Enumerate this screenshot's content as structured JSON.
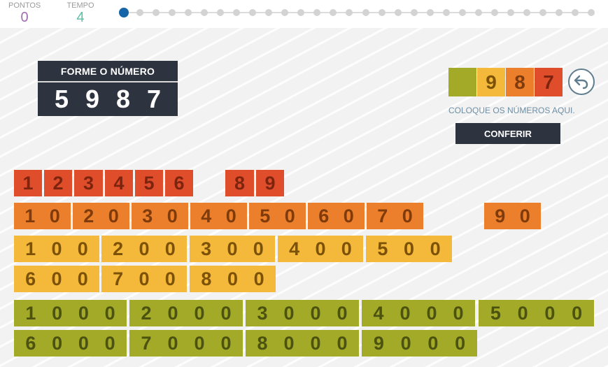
{
  "header": {
    "points_label": "PONTOS",
    "points_value": "0",
    "time_label": "TEMPO",
    "time_value": "4",
    "progress": {
      "current_step": 1,
      "total_steps": 30
    }
  },
  "target": {
    "title": "FORME O NÚMERO",
    "digits": [
      "5",
      "9",
      "8",
      "7"
    ]
  },
  "answer": {
    "slots": [
      "",
      "9",
      "8",
      "7"
    ],
    "hint": "COLOQUE OS NÚMEROS AQUI.",
    "check_label": "CONFERIR"
  },
  "tiles": {
    "units": [
      "1",
      "2",
      "3",
      "4",
      "5",
      "6",
      "8",
      "9"
    ],
    "tens": [
      "10",
      "20",
      "30",
      "40",
      "50",
      "60",
      "70",
      "90"
    ],
    "hundreds": [
      "100",
      "200",
      "300",
      "400",
      "500",
      "600",
      "700",
      "800"
    ],
    "thousands": [
      "1000",
      "2000",
      "3000",
      "4000",
      "5000",
      "6000",
      "7000",
      "8000",
      "9000"
    ]
  },
  "colors": {
    "units": "#e04d2b",
    "tens": "#ec7f2b",
    "hundreds": "#f4b83a",
    "thousands": "#a2aa28",
    "panel": "#2e3340",
    "progress_active": "#1565a8"
  }
}
